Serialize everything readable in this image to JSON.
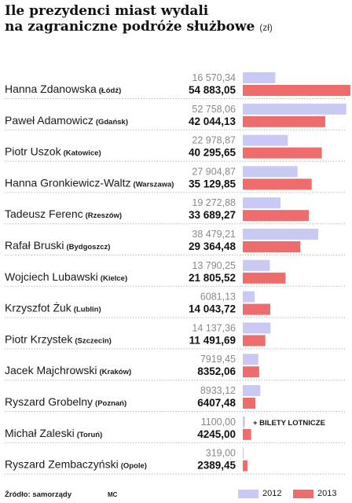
{
  "title_line1": "Ile prezydenci miast wydali",
  "title_line2": "na zagraniczne podróże służbowe",
  "unit": "(zł)",
  "source": "Źródło: samorządy",
  "author": "MC",
  "note": "+ BILETY LOTNICZE",
  "colors": {
    "y2012": "#c9c9f3",
    "y2013": "#ee6c6c"
  },
  "chart_data": {
    "type": "bar",
    "orientation": "horizontal",
    "categories": [
      {
        "name": "Hanna Zdanowska",
        "city": "(Łódź)",
        "v2012_label": "16 570,34",
        "v2013_label": "54 883,05"
      },
      {
        "name": "Paweł Adamowicz",
        "city": "(Gdańsk)",
        "v2012_label": "52 758,06",
        "v2013_label": "42 044,13"
      },
      {
        "name": "Piotr Uszok",
        "city": "(Katowice)",
        "v2012_label": "22 978,87",
        "v2013_label": "40 295,65"
      },
      {
        "name": "Hanna Gronkiewicz-Waltz",
        "city": "(Warszawa)",
        "v2012_label": "27 904,87",
        "v2013_label": "35 129,85"
      },
      {
        "name": "Tadeusz Ferenc",
        "city": "(Rzeszów)",
        "v2012_label": "19 272,88",
        "v2013_label": "33 689,27"
      },
      {
        "name": "Rafał Bruski",
        "city": "(Bydgoszcz)",
        "v2012_label": "38 479,21",
        "v2013_label": "29 364,48"
      },
      {
        "name": "Wojciech Lubawski",
        "city": "(Kielce)",
        "v2012_label": "13 790,25",
        "v2013_label": "21 805,52"
      },
      {
        "name": "Krzyszfot Żuk",
        "city": "(Lublin)",
        "v2012_label": "6081,13",
        "v2013_label": "14 043,72"
      },
      {
        "name": "Piotr Krzystek",
        "city": "(Szczecin)",
        "v2012_label": "14 137,36",
        "v2013_label": "11 491,69"
      },
      {
        "name": "Jacek Majchrowski",
        "city": "(Kraków)",
        "v2012_label": "7919,45",
        "v2013_label": "8352,06"
      },
      {
        "name": "Ryszard Grobelny",
        "city": "(Poznań)",
        "v2012_label": "8933,12",
        "v2013_label": "6407,48"
      },
      {
        "name": "Michał Zaleski",
        "city": "(Toruń)",
        "v2012_label": "1100,00",
        "v2013_label": "4245,00"
      },
      {
        "name": "Ryszard Zembaczyński",
        "city": "(Opole)",
        "v2012_label": "319,00",
        "v2013_label": "2389,45"
      }
    ],
    "series": [
      {
        "name": "2012",
        "values": [
          16570.34,
          52758.06,
          22978.87,
          27904.87,
          19272.88,
          38479.21,
          13790.25,
          6081.13,
          14137.36,
          7919.45,
          8933.12,
          1100.0,
          319.0
        ]
      },
      {
        "name": "2013",
        "values": [
          54883.05,
          42044.13,
          40295.65,
          35129.85,
          33689.27,
          29364.48,
          21805.52,
          14043.72,
          11491.69,
          8352.06,
          6407.48,
          4245.0,
          2389.45
        ]
      }
    ],
    "xlim": [
      0,
      54883.05
    ],
    "legend_position": "bottom-right",
    "grid": false
  }
}
